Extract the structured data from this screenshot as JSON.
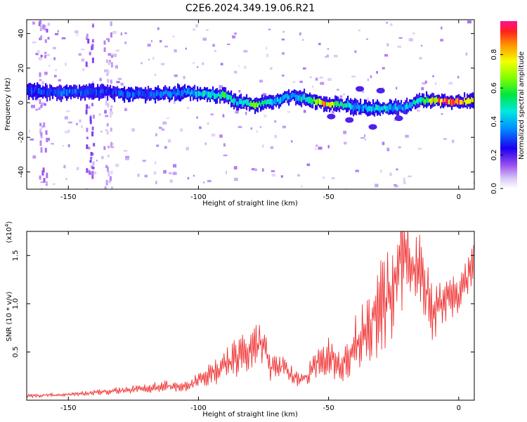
{
  "title": "C2E6.2024.349.19.06.R21",
  "colors": {
    "snr_line": "#ee2222",
    "background": "#ffffff",
    "axis": "#000000"
  },
  "chart_data": [
    {
      "type": "heatmap",
      "title": "C2E6.2024.349.19.06.R21",
      "xlabel": "Height of straight line (km)",
      "ylabel": "Frequency (Hz)",
      "xlim": [
        -166,
        6
      ],
      "ylim": [
        -50,
        48
      ],
      "x_ticks": [
        -150,
        -100,
        -50,
        0
      ],
      "y_ticks": [
        -40,
        -20,
        0,
        20,
        40
      ],
      "colorbar": {
        "label": "Normalized spectral amplitude",
        "range": [
          0,
          1
        ],
        "ticks": [
          0.0,
          0.2,
          0.4,
          0.6,
          0.8
        ]
      },
      "ridge": {
        "x": [
          -166,
          -155,
          -145,
          -135,
          -125,
          -115,
          -105,
          -97,
          -90,
          -85,
          -78,
          -72,
          -65,
          -58,
          -52,
          -45,
          -38,
          -30,
          -22,
          -15,
          -8,
          0,
          6
        ],
        "frequency": [
          7,
          6,
          6,
          6,
          5,
          5,
          6,
          5,
          4,
          0,
          -1,
          0,
          4,
          2,
          0,
          -1,
          -3,
          -3,
          -3,
          1,
          1,
          1,
          1
        ],
        "amplitude": [
          0.3,
          0.35,
          0.35,
          0.3,
          0.35,
          0.35,
          0.4,
          0.5,
          0.6,
          0.45,
          0.7,
          0.45,
          0.4,
          0.55,
          0.9,
          0.55,
          0.4,
          0.5,
          0.4,
          0.55,
          0.95,
          1.0,
          0.9
        ]
      }
    },
    {
      "type": "line",
      "xlabel": "Height of straight line (km)",
      "ylabel": "SNR (10 * v/v)",
      "y_multiplier": "(x10",
      "y_multiplier_exp": "4",
      "y_multiplier_close": ")",
      "xlim": [
        -166,
        6
      ],
      "ylim": [
        0,
        1.75
      ],
      "x_ticks": [
        -150,
        -100,
        -50,
        0
      ],
      "y_ticks": [
        0.5,
        1.0,
        1.5
      ],
      "series": [
        {
          "x": [
            -166,
            -160,
            -150,
            -140,
            -130,
            -120,
            -112,
            -105,
            -100,
            -95,
            -90,
            -85,
            -80,
            -76,
            -72,
            -68,
            -62,
            -58,
            -55,
            -50,
            -45,
            -40,
            -35,
            -30,
            -25,
            -22,
            -20,
            -17,
            -13,
            -10,
            -5,
            0,
            3,
            6
          ],
          "y": [
            0.04,
            0.05,
            0.06,
            0.08,
            0.1,
            0.12,
            0.15,
            0.14,
            0.2,
            0.28,
            0.35,
            0.45,
            0.5,
            0.62,
            0.32,
            0.35,
            0.22,
            0.25,
            0.4,
            0.45,
            0.35,
            0.6,
            0.75,
            0.95,
            1.2,
            1.45,
            1.5,
            1.3,
            1.2,
            0.9,
            1.05,
            1.1,
            1.25,
            1.45
          ],
          "spread": [
            0.02,
            0.02,
            0.02,
            0.03,
            0.04,
            0.05,
            0.06,
            0.06,
            0.08,
            0.12,
            0.18,
            0.22,
            0.25,
            0.25,
            0.15,
            0.12,
            0.08,
            0.1,
            0.18,
            0.22,
            0.18,
            0.3,
            0.4,
            0.5,
            0.55,
            0.55,
            0.55,
            0.45,
            0.5,
            0.3,
            0.25,
            0.2,
            0.2,
            0.2
          ]
        }
      ]
    }
  ]
}
